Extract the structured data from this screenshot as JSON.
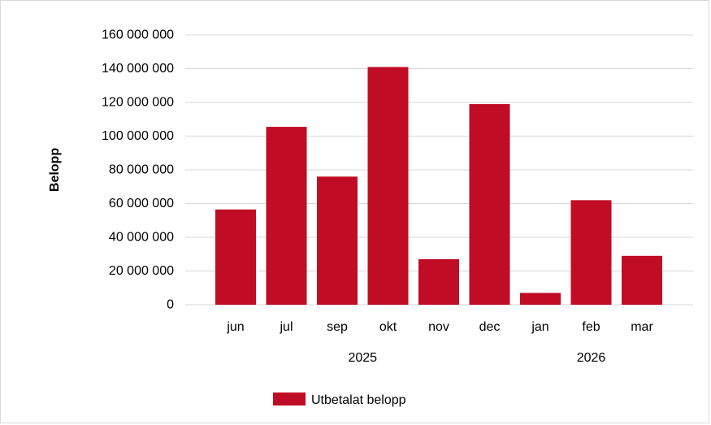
{
  "chart_data": {
    "type": "bar",
    "categories": [
      "jun",
      "jul",
      "sep",
      "okt",
      "nov",
      "dec",
      "jan",
      "feb",
      "mar"
    ],
    "category_groups": [
      {
        "label": "2025",
        "categories": [
          "jun",
          "jul",
          "sep",
          "okt",
          "nov",
          "dec"
        ]
      },
      {
        "label": "2026",
        "categories": [
          "jan",
          "feb",
          "mar"
        ]
      }
    ],
    "series": [
      {
        "name": "Utbetalat belopp",
        "color": "#c00d25",
        "values": [
          56500000,
          105500000,
          76000000,
          141000000,
          27000000,
          119000000,
          7000000,
          62000000,
          29000000
        ]
      }
    ],
    "xlabel": "",
    "ylabel": "Belopp",
    "ylim": [
      0,
      160000000
    ],
    "yticks": [
      0,
      20000000,
      40000000,
      60000000,
      80000000,
      100000000,
      120000000,
      140000000,
      160000000
    ],
    "ytick_labels": [
      "0",
      "20 000 000",
      "40 000 000",
      "60 000 000",
      "80 000 000",
      "100 000 000",
      "120 000 000",
      "140 000 000",
      "160 000 000"
    ],
    "grid": true,
    "gridline_color": "#d9d9d9",
    "legend_position": "bottom-center"
  }
}
